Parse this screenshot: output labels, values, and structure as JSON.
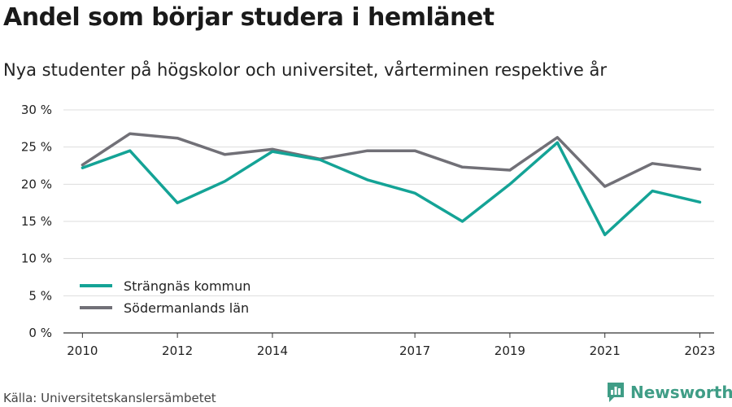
{
  "header": {
    "title": "Andel som börjar studera i hemlänet",
    "subtitle": "Nya studenter på högskolor och universitet, vårterminen respektive år"
  },
  "footer": {
    "source": "Källa: Universitetskanslersämbetet",
    "brand": "Newsworthy"
  },
  "colors": {
    "series1": "#14a396",
    "series2": "#717077",
    "grid": "#dddddd",
    "axis": "#333333",
    "brand": "#3f9d86"
  },
  "chart_data": {
    "type": "line",
    "title": "Andel som börjar studera i hemlänet",
    "subtitle": "Nya studenter på högskolor och universitet, vårterminen respektive år",
    "x": [
      2010,
      2011,
      2012,
      2013,
      2014,
      2015,
      2016,
      2017,
      2018,
      2019,
      2020,
      2021,
      2022,
      2023
    ],
    "xticks": [
      2010,
      2012,
      2014,
      2017,
      2019,
      2021,
      2023
    ],
    "xlim": [
      2009.6,
      2023.3
    ],
    "ylim": [
      0,
      30
    ],
    "yticks": [
      0,
      5,
      10,
      15,
      20,
      25,
      30
    ],
    "ytick_labels": [
      "0 %",
      "5 %",
      "10 %",
      "15 %",
      "20 %",
      "25 %",
      "30 %"
    ],
    "grid": true,
    "legend_position": "bottom-left",
    "series": [
      {
        "name": "Strängnäs kommun",
        "color": "#14a396",
        "values": [
          22.2,
          24.5,
          17.5,
          20.4,
          24.4,
          23.3,
          20.6,
          18.8,
          15.0,
          20.0,
          25.6,
          13.2,
          19.1,
          17.6
        ]
      },
      {
        "name": "Södermanlands län",
        "color": "#717077",
        "values": [
          22.6,
          26.8,
          26.2,
          24.0,
          24.7,
          23.4,
          24.5,
          24.5,
          22.3,
          21.9,
          26.3,
          19.7,
          22.8,
          22.0
        ]
      }
    ]
  }
}
